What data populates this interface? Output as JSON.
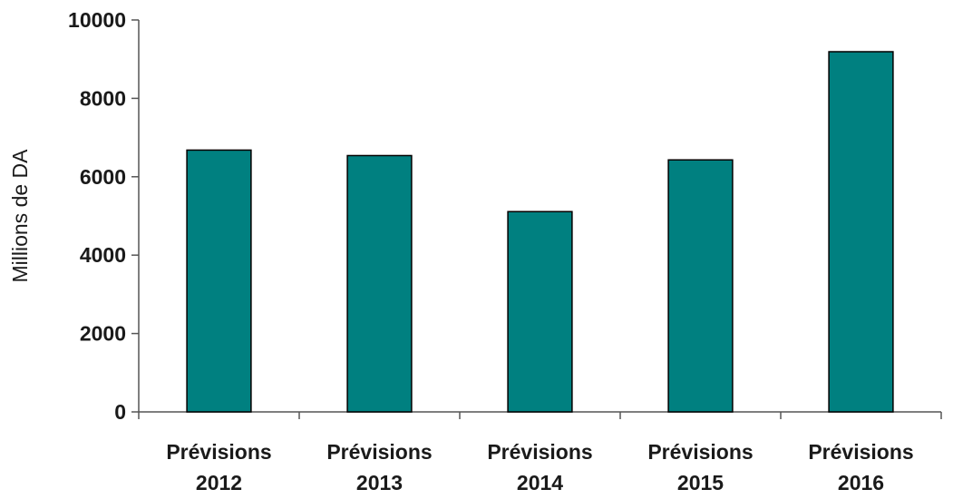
{
  "chart_data": {
    "type": "bar",
    "categories": [
      [
        "Prévisions",
        "2012"
      ],
      [
        "Prévisions",
        "2013"
      ],
      [
        "Prévisions",
        "2014"
      ],
      [
        "Prévisions",
        "2015"
      ],
      [
        "Prévisions",
        "2016"
      ]
    ],
    "values": [
      6680,
      6540,
      5110,
      6430,
      9190
    ],
    "title": "",
    "xlabel": "",
    "ylabel": "Millions de DA",
    "ylim": [
      0,
      10000
    ],
    "yticks": [
      "0",
      "2000",
      "4000",
      "6000",
      "8000",
      "10000"
    ],
    "grid": false,
    "legend": "none",
    "colors": {
      "bar": "#008080",
      "bar_stroke": "#000000",
      "axis": "#555555"
    }
  }
}
